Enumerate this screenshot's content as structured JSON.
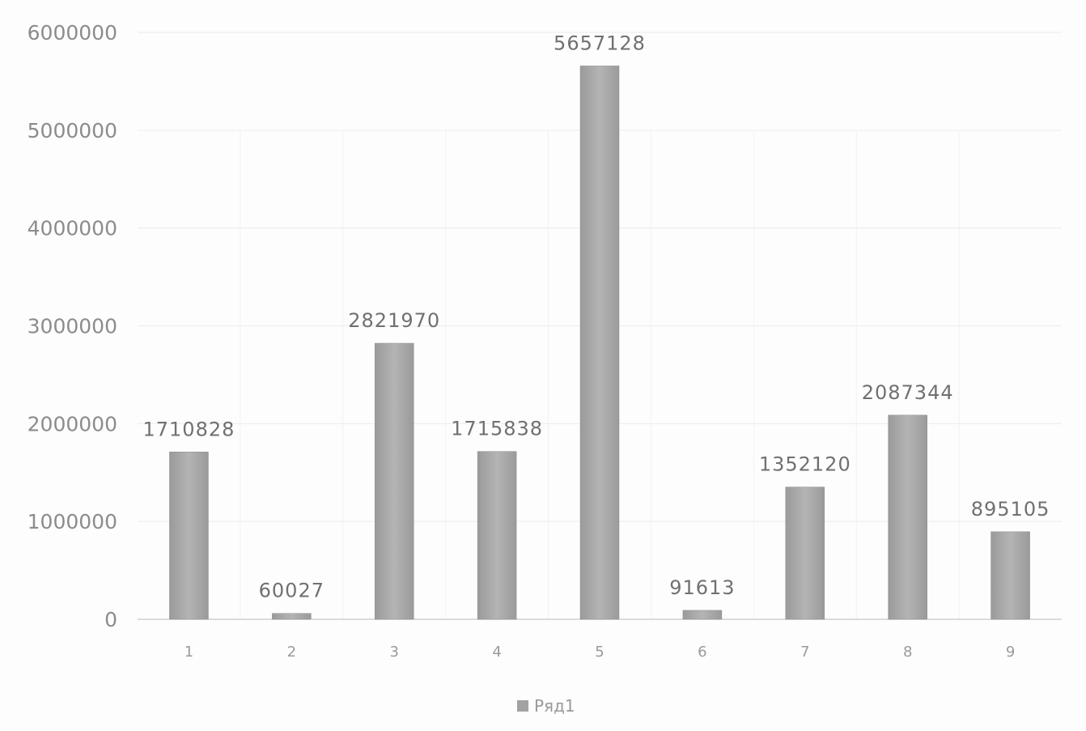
{
  "chart_data": {
    "type": "bar",
    "categories": [
      "1",
      "2",
      "3",
      "4",
      "5",
      "6",
      "7",
      "8",
      "9"
    ],
    "series": [
      {
        "name": "Ряд1",
        "values": [
          1710828,
          60027,
          2821970,
          1715838,
          5657128,
          91613,
          1352120,
          2087344,
          895105
        ]
      }
    ],
    "data_labels": [
      "1710828",
      "60027",
      "2821970",
      "1715838",
      "5657128",
      "91613",
      "1352120",
      "2087344",
      "895105"
    ],
    "y_ticks": [
      "0",
      "1000000",
      "2000000",
      "3000000",
      "4000000",
      "5000000",
      "6000000"
    ],
    "ylim": [
      0,
      6000000
    ],
    "title": "",
    "xlabel": "",
    "ylabel": "",
    "legend": "bottom",
    "grid": true,
    "colors": {
      "bar": "#a2a2a2",
      "bar_dark": "#8a8a8a",
      "grid": "#ececec",
      "axis": "#d0d0d0"
    }
  }
}
